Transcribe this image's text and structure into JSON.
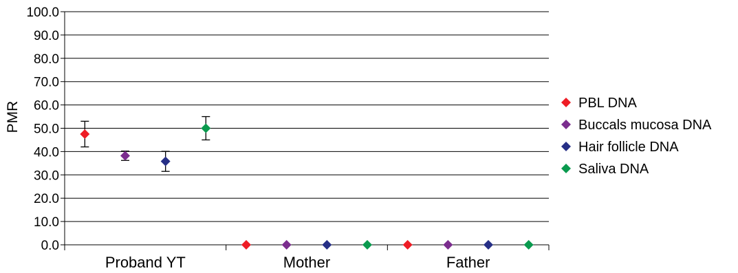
{
  "chart_data": {
    "type": "scatter",
    "title": "",
    "xlabel": "",
    "ylabel": "PMR",
    "ylim": [
      0,
      100
    ],
    "yticks": [
      "0.0",
      "10.0",
      "20.0",
      "30.0",
      "40.0",
      "50.0",
      "60.0",
      "70.0",
      "80.0",
      "90.0",
      "100.0"
    ],
    "categories": [
      "Proband YT",
      "Mother",
      "Father"
    ],
    "grid": true,
    "legend_position": "right",
    "series": [
      {
        "name": "PBL DNA",
        "color": "#ee1c25",
        "marker": "diamond",
        "values": [
          47.5,
          0,
          0
        ],
        "error": [
          5.5,
          null,
          null
        ]
      },
      {
        "name": "Buccals mucosa DNA",
        "color": "#7b2d8e",
        "marker": "diamond",
        "values": [
          38.2,
          0,
          0
        ],
        "error": [
          2.0,
          null,
          null
        ]
      },
      {
        "name": "Hair follicle DNA",
        "color": "#262f86",
        "marker": "diamond",
        "values": [
          35.8,
          0,
          0
        ],
        "error": [
          4.3,
          null,
          null
        ]
      },
      {
        "name": "Saliva DNA",
        "color": "#0a9a4e",
        "marker": "diamond",
        "values": [
          50.0,
          0,
          0
        ],
        "error": [
          5.0,
          null,
          null
        ]
      }
    ]
  }
}
